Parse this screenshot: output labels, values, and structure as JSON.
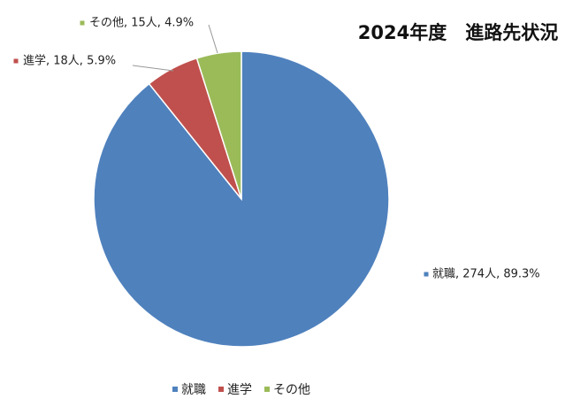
{
  "chart_data": {
    "type": "pie",
    "title": "2024年度　進路先状況",
    "categories": [
      "就職",
      "進学",
      "その他"
    ],
    "values": [
      274,
      18,
      15
    ],
    "value_labels": [
      "就職, 274人, 89.3%",
      "進学, 18人, 5.9%",
      "その他, 15人, 4.9%"
    ],
    "colors": [
      "#4f81bd",
      "#c0504d",
      "#9bbb59"
    ],
    "legend": "bottom"
  }
}
